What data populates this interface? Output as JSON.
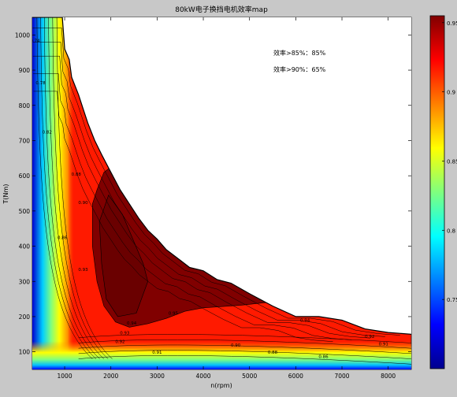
{
  "window": {
    "background": "#c8c8c8"
  },
  "chart_data": {
    "type": "heatmap",
    "title": "80kW电子换挡电机效率map",
    "xlabel": "n(rpm)",
    "ylabel": "T(Nm)",
    "xlim": [
      300,
      8500
    ],
    "ylim": [
      50,
      1050
    ],
    "x_ticks": [
      1000,
      2000,
      3000,
      4000,
      5000,
      6000,
      7000,
      8000
    ],
    "y_ticks": [
      100,
      200,
      300,
      400,
      500,
      600,
      700,
      800,
      900,
      1000
    ],
    "annotations": [
      "效率>85%：85%",
      "效率>90%：65%"
    ],
    "colorbar": {
      "range": [
        0.7,
        0.955
      ],
      "ticks": [
        0.75,
        0.8,
        0.85,
        0.9,
        0.95
      ],
      "colormap": "jet"
    },
    "torque_envelope": {
      "rpm": [
        300,
        950,
        1000,
        1100,
        1150,
        1300,
        1400,
        1500,
        1650,
        1800,
        2000,
        2200,
        2400,
        2600,
        2800,
        3000,
        3200,
        3500,
        3700,
        4000,
        4300,
        4600,
        5000,
        5500,
        6000,
        6500,
        7000,
        7500,
        8000,
        8500
      ],
      "torque": [
        1050,
        1050,
        960,
        930,
        880,
        830,
        790,
        750,
        700,
        660,
        610,
        560,
        520,
        480,
        445,
        420,
        390,
        360,
        340,
        330,
        305,
        295,
        265,
        230,
        200,
        200,
        190,
        165,
        155,
        150
      ]
    },
    "efficiency_regions": [
      {
        "level": 0.95,
        "color": "#800000",
        "rpm": [
          1600,
          1700,
          1850,
          2000,
          2150,
          2300,
          2500,
          3000,
          3500,
          4000,
          4500,
          4800,
          5200,
          5350,
          4800,
          4000,
          3600,
          3200,
          2800,
          2400,
          2100,
          1850,
          1700,
          1600
        ],
        "torque": [
          520,
          560,
          610,
          625,
          600,
          560,
          520,
          420,
          360,
          330,
          300,
          300,
          265,
          240,
          232,
          225,
          215,
          195,
          180,
          170,
          185,
          230,
          300,
          400
        ]
      },
      {
        "level": 0.96,
        "color": "#6a0000",
        "rpm": [
          1750,
          1950,
          2250,
          2700,
          2800,
          2550,
          2150,
          1900,
          1800
        ],
        "torque": [
          470,
          545,
          490,
          350,
          300,
          210,
          200,
          250,
          350
        ]
      }
    ],
    "contour_labels": [
      {
        "text": "0.95",
        "rpm": 3350,
        "torque": 205
      },
      {
        "text": "0.94",
        "rpm": 2450,
        "torque": 178
      },
      {
        "text": "0.93",
        "rpm": 2300,
        "torque": 150
      },
      {
        "text": "0.92",
        "rpm": 2200,
        "torque": 125
      },
      {
        "text": "0.91",
        "rpm": 3000,
        "torque": 95
      },
      {
        "text": "0.90",
        "rpm": 4700,
        "torque": 115
      },
      {
        "text": "0.88",
        "rpm": 5500,
        "torque": 95
      },
      {
        "text": "0.86",
        "rpm": 6600,
        "torque": 82
      },
      {
        "text": "0.94",
        "rpm": 6200,
        "torque": 185
      },
      {
        "text": "0.92",
        "rpm": 7600,
        "torque": 140
      },
      {
        "text": "0.91",
        "rpm": 7900,
        "torque": 118
      },
      {
        "text": "0.88",
        "rpm": 1250,
        "torque": 600
      },
      {
        "text": "0.90",
        "rpm": 1400,
        "torque": 520
      },
      {
        "text": "0.86",
        "rpm": 950,
        "torque": 420
      },
      {
        "text": "0.82",
        "rpm": 620,
        "torque": 720
      },
      {
        "text": "0.78",
        "rpm": 480,
        "torque": 860
      },
      {
        "text": "0.74",
        "rpm": 360,
        "torque": 980
      },
      {
        "text": "0.93",
        "rpm": 1400,
        "torque": 330
      }
    ]
  }
}
